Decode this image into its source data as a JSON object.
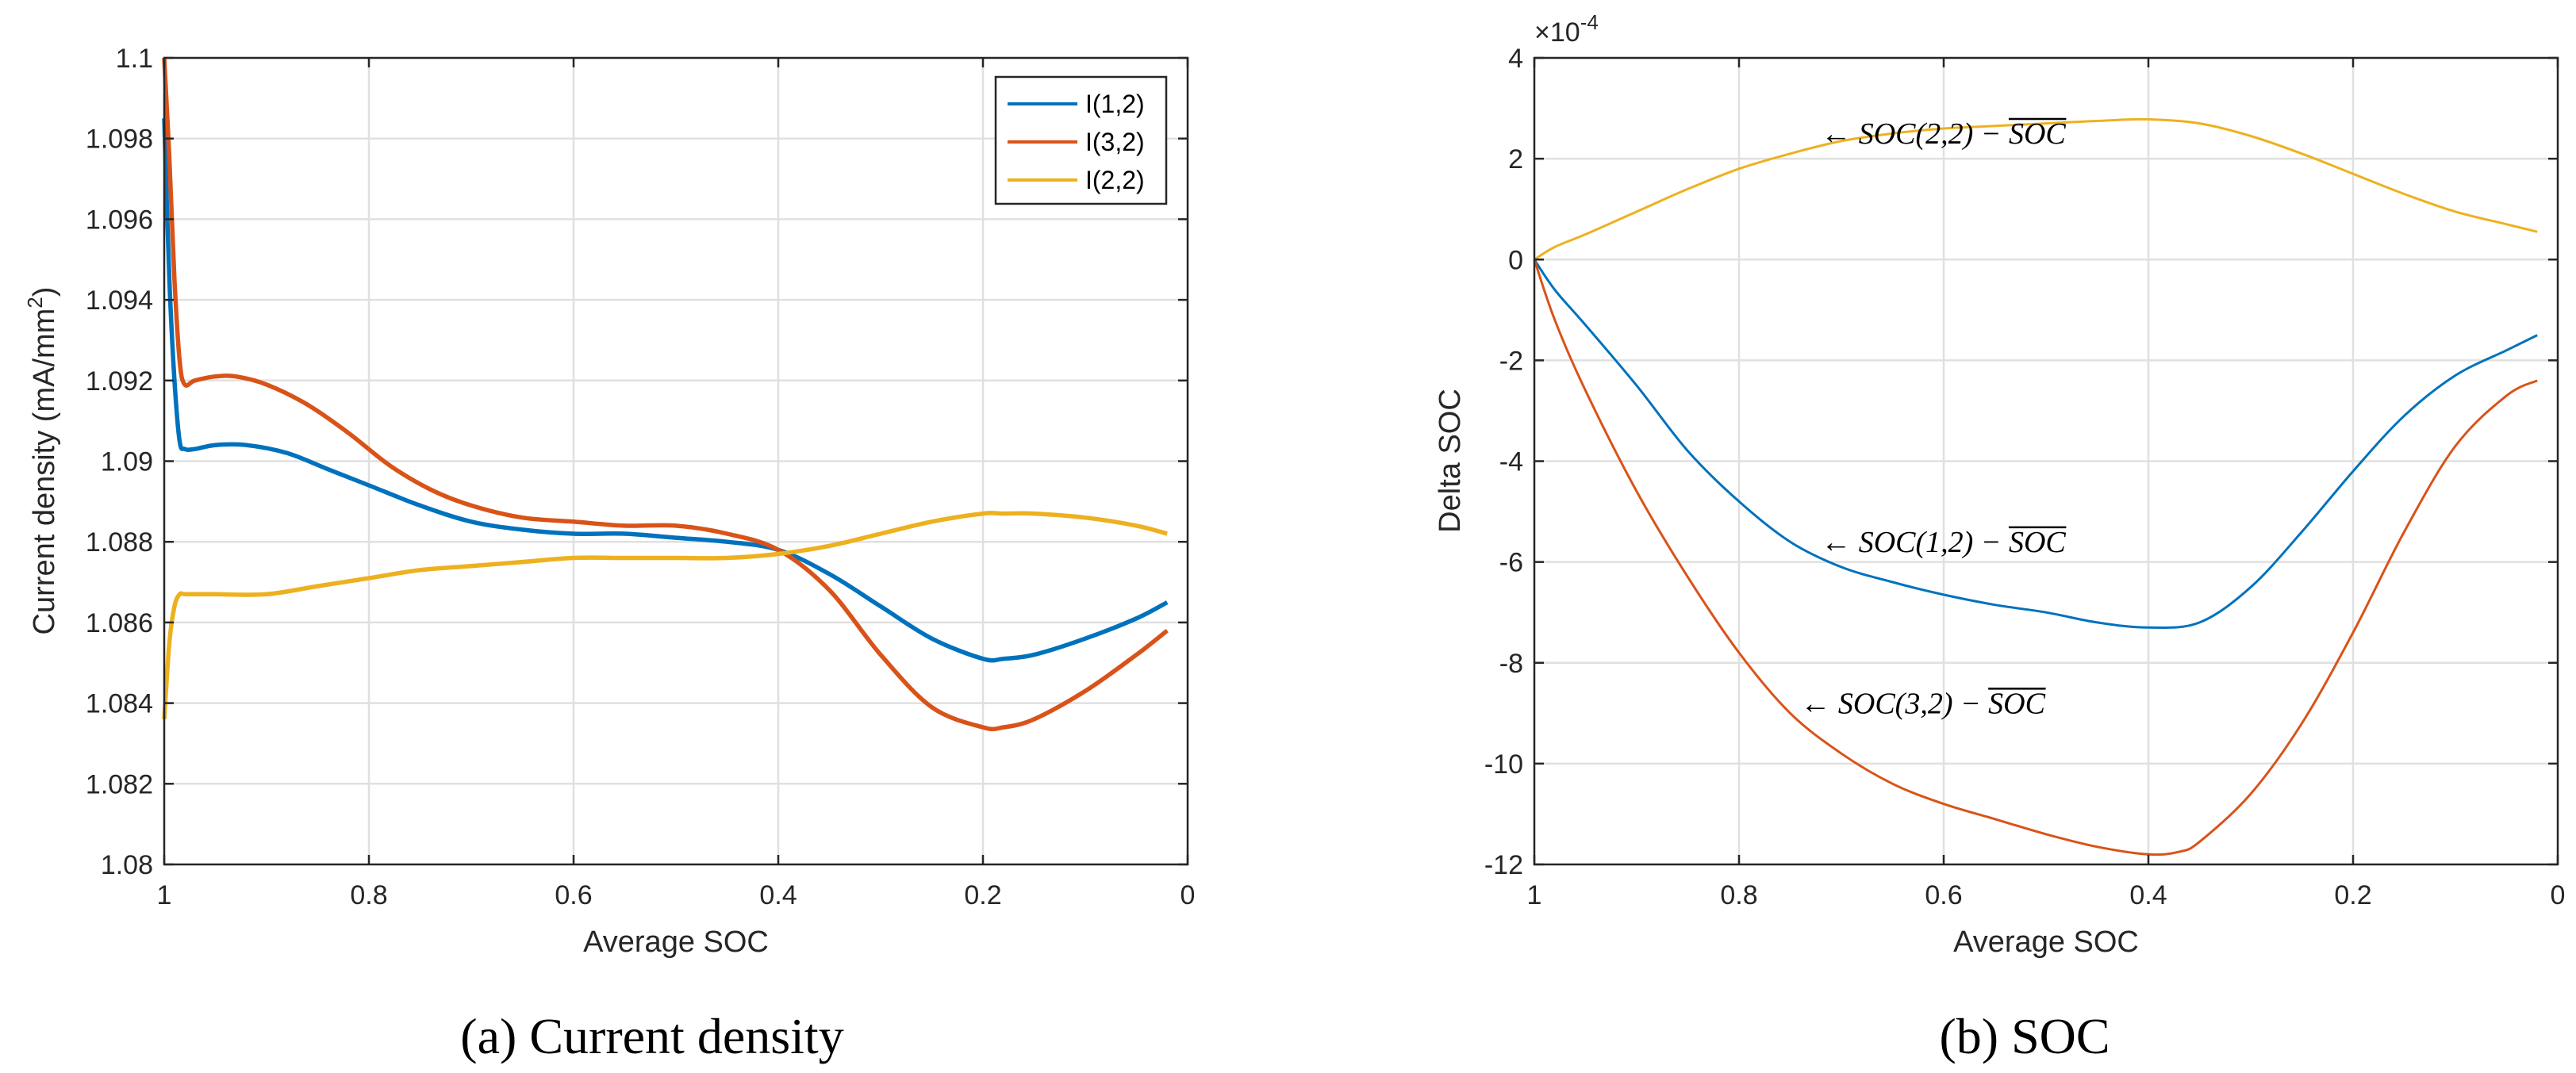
{
  "chart_data": [
    {
      "type": "line",
      "subfigure": "a",
      "caption": "(a)  Current density",
      "xlabel": "Average SOC",
      "ylabel": "Current density (mA/mm",
      "ylabel_sup": "2",
      "ylabel_close": ")",
      "xlim": [
        1,
        0
      ],
      "ylim": [
        1.08,
        1.1
      ],
      "xticks": [
        "1",
        "0.8",
        "0.6",
        "0.4",
        "0.2",
        "0"
      ],
      "yticks": [
        "1.08",
        "1.082",
        "1.084",
        "1.086",
        "1.088",
        "1.09",
        "1.092",
        "1.094",
        "1.096",
        "1.098",
        "1.1"
      ],
      "grid": true,
      "legend_position": "top-right",
      "series": [
        {
          "name": "I(1,2)",
          "color": "#0072BD",
          "x": [
            1.0,
            0.995,
            0.99,
            0.985,
            0.98,
            0.97,
            0.95,
            0.92,
            0.88,
            0.84,
            0.8,
            0.75,
            0.7,
            0.65,
            0.6,
            0.55,
            0.5,
            0.45,
            0.4,
            0.35,
            0.3,
            0.25,
            0.2,
            0.18,
            0.15,
            0.1,
            0.05,
            0.02
          ],
          "y": [
            1.0985,
            1.0945,
            1.092,
            1.0905,
            1.0903,
            1.0903,
            1.0904,
            1.0904,
            1.0902,
            1.0898,
            1.0894,
            1.0889,
            1.0885,
            1.0883,
            1.0882,
            1.0882,
            1.0881,
            1.088,
            1.0878,
            1.0872,
            1.0864,
            1.0856,
            1.0851,
            1.0851,
            1.0852,
            1.0856,
            1.0861,
            1.0865
          ]
        },
        {
          "name": "I(3,2)",
          "color": "#D95319",
          "x": [
            1.0,
            0.995,
            0.99,
            0.985,
            0.98,
            0.97,
            0.95,
            0.93,
            0.9,
            0.86,
            0.82,
            0.78,
            0.74,
            0.7,
            0.65,
            0.6,
            0.55,
            0.5,
            0.45,
            0.4,
            0.35,
            0.3,
            0.25,
            0.2,
            0.18,
            0.15,
            0.1,
            0.05,
            0.02
          ],
          "y": [
            1.1,
            1.0975,
            1.0945,
            1.0925,
            1.0919,
            1.092,
            1.0921,
            1.0921,
            1.0919,
            1.0914,
            1.0907,
            1.0899,
            1.0893,
            1.0889,
            1.0886,
            1.0885,
            1.0884,
            1.0884,
            1.0882,
            1.0878,
            1.0868,
            1.0852,
            1.0839,
            1.0834,
            1.0834,
            1.0836,
            1.0843,
            1.0852,
            1.0858
          ]
        },
        {
          "name": "I(2,2)",
          "color": "#EDB120",
          "x": [
            1.0,
            0.995,
            0.99,
            0.985,
            0.98,
            0.97,
            0.95,
            0.9,
            0.85,
            0.8,
            0.75,
            0.7,
            0.65,
            0.6,
            0.55,
            0.5,
            0.45,
            0.4,
            0.35,
            0.3,
            0.25,
            0.2,
            0.18,
            0.15,
            0.1,
            0.05,
            0.02
          ],
          "y": [
            1.0836,
            1.0855,
            1.0864,
            1.0867,
            1.0867,
            1.0867,
            1.0867,
            1.0867,
            1.0869,
            1.0871,
            1.0873,
            1.0874,
            1.0875,
            1.0876,
            1.0876,
            1.0876,
            1.0876,
            1.0877,
            1.0879,
            1.0882,
            1.0885,
            1.0887,
            1.0887,
            1.0887,
            1.0886,
            1.0884,
            1.0882
          ]
        }
      ]
    },
    {
      "type": "line",
      "subfigure": "b",
      "caption": "(b)  SOC",
      "xlabel": "Average SOC",
      "ylabel": "Delta SOC",
      "exponent_label": "×10",
      "exponent_power": "-4",
      "xlim": [
        1,
        0
      ],
      "ylim": [
        -12,
        4
      ],
      "yscale_multiplier": 0.0001,
      "xticks": [
        "1",
        "0.8",
        "0.6",
        "0.4",
        "0.2",
        "0"
      ],
      "yticks": [
        "-12",
        "-10",
        "-8",
        "-6",
        "-4",
        "-2",
        "0",
        "2",
        "4"
      ],
      "grid": true,
      "annotations": [
        {
          "series": "SOC(2,2)",
          "arrow": "←",
          "lhs": "SOC(2,2) − ",
          "bar": "SOC",
          "anchor_x": 0.72,
          "anchor_y": 2.3
        },
        {
          "series": "SOC(1,2)",
          "arrow": "←",
          "lhs": "SOC(1,2) − ",
          "bar": "SOC",
          "anchor_x": 0.72,
          "anchor_y": -5.8
        },
        {
          "series": "SOC(3,2)",
          "arrow": "←",
          "lhs": "SOC(3,2) − ",
          "bar": "SOC",
          "anchor_x": 0.74,
          "anchor_y": -9.0
        }
      ],
      "series": [
        {
          "name": "SOC(2,2)",
          "color": "#EDB120",
          "x": [
            1.0,
            0.98,
            0.95,
            0.9,
            0.85,
            0.8,
            0.75,
            0.7,
            0.65,
            0.6,
            0.55,
            0.5,
            0.45,
            0.4,
            0.35,
            0.3,
            0.25,
            0.2,
            0.15,
            0.1,
            0.05,
            0.02
          ],
          "y": [
            0.0,
            0.25,
            0.5,
            0.95,
            1.4,
            1.8,
            2.1,
            2.35,
            2.5,
            2.6,
            2.65,
            2.7,
            2.75,
            2.78,
            2.7,
            2.45,
            2.1,
            1.7,
            1.3,
            0.95,
            0.7,
            0.55
          ]
        },
        {
          "name": "SOC(1,2)",
          "color": "#0072BD",
          "x": [
            1.0,
            0.98,
            0.95,
            0.9,
            0.85,
            0.8,
            0.75,
            0.7,
            0.65,
            0.6,
            0.55,
            0.5,
            0.45,
            0.4,
            0.35,
            0.3,
            0.25,
            0.2,
            0.15,
            0.1,
            0.05,
            0.02
          ],
          "y": [
            0.0,
            -0.6,
            -1.3,
            -2.5,
            -3.8,
            -4.8,
            -5.6,
            -6.1,
            -6.4,
            -6.65,
            -6.85,
            -7.0,
            -7.2,
            -7.3,
            -7.2,
            -6.5,
            -5.4,
            -4.2,
            -3.1,
            -2.3,
            -1.8,
            -1.5
          ]
        },
        {
          "name": "SOC(3,2)",
          "color": "#D95319",
          "x": [
            1.0,
            0.98,
            0.95,
            0.9,
            0.85,
            0.8,
            0.75,
            0.7,
            0.65,
            0.6,
            0.55,
            0.5,
            0.45,
            0.4,
            0.37,
            0.35,
            0.3,
            0.25,
            0.2,
            0.15,
            0.1,
            0.05,
            0.02
          ],
          "y": [
            0.0,
            -1.2,
            -2.6,
            -4.6,
            -6.3,
            -7.8,
            -9.0,
            -9.8,
            -10.4,
            -10.8,
            -11.1,
            -11.4,
            -11.65,
            -11.8,
            -11.75,
            -11.55,
            -10.6,
            -9.2,
            -7.4,
            -5.4,
            -3.7,
            -2.7,
            -2.4
          ]
        }
      ]
    }
  ]
}
